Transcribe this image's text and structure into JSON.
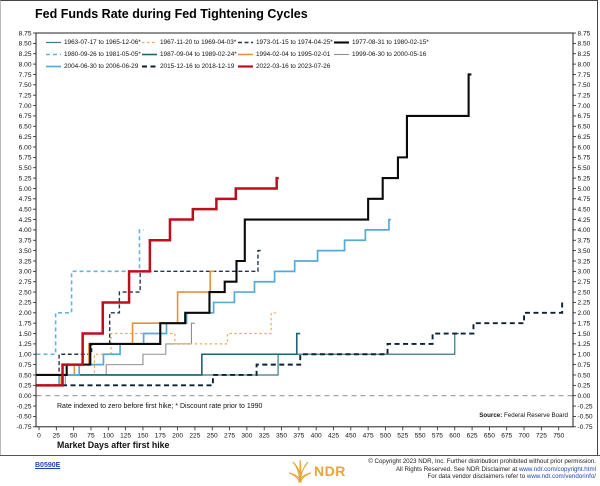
{
  "header": {
    "title": "Fed Funds Rate during Fed Tightening Cycles"
  },
  "plot": {
    "note": "Rate indexed to zero before first hike; * Discount rate prior to 1990",
    "source_label": "Source:",
    "source_value": "Federal Reserve Board"
  },
  "xaxis": {
    "label": "Market Days after first hike"
  },
  "footer": {
    "figure_id": "B0590E",
    "brand": "NDR",
    "copyright_line1": "© Copyright 2023 NDR, Inc. Further distribution prohibited without prior permission.",
    "copyright_line2_prefix": "All Rights Reserved. See NDR Disclaimer at ",
    "copyright_line2_link": "www.ndr.com/copyright.html",
    "copyright_line3_prefix": "For data vendor disclaimers refer to ",
    "copyright_line3_link": "www.ndr.com/vendorinfo/"
  },
  "colors": {
    "accent_red": "#c00d1e",
    "brand_orange": "#e8a33b",
    "link_blue": "#2244bb",
    "frame": "#222222",
    "zero_line": "#9a9a9a"
  },
  "chart_data": {
    "type": "line",
    "title": "Fed Funds Rate during Fed Tightening Cycles",
    "xlabel": "Market Days after first hike",
    "ylabel": "",
    "xlim": [
      0,
      750
    ],
    "ylim": [
      -0.75,
      8.75
    ],
    "grid": "zero-line-only",
    "legend_position": "top-left-inside",
    "x_ticks": [
      0,
      25,
      50,
      75,
      100,
      125,
      150,
      175,
      200,
      225,
      250,
      275,
      300,
      325,
      350,
      375,
      400,
      425,
      450,
      475,
      500,
      525,
      550,
      575,
      600,
      625,
      650,
      675,
      700,
      725,
      750
    ],
    "y_ticks": [
      "8.75",
      "8.50",
      "8.25",
      "8.00",
      "7.75",
      "7.50",
      "7.25",
      "7.00",
      "6.75",
      "6.50",
      "6.25",
      "6.00",
      "5.75",
      "5.50",
      "5.25",
      "5.00",
      "4.75",
      "4.50",
      "4.25",
      "4.00",
      "3.75",
      "3.50",
      "3.25",
      "3.00",
      "2.75",
      "2.50",
      "2.25",
      "2.00",
      "1.75",
      "1.50",
      "1.25",
      "1.00",
      "0.75",
      "0.50",
      "0.25",
      "0.00",
      "-0.25",
      "-0.50",
      "-0.75"
    ],
    "legend_rows": [
      [
        0,
        1,
        2,
        3
      ],
      [
        4,
        5,
        6,
        7
      ],
      [
        8,
        9,
        10
      ]
    ],
    "series": [
      {
        "name": "1963-07-17 to 1965-12-06*",
        "color": "#3a7888",
        "dash": "",
        "width": 1.2,
        "points": [
          [
            0,
            0.5
          ],
          [
            345,
            1.0
          ],
          [
            600,
            1.5
          ],
          [
            606,
            1.5
          ]
        ]
      },
      {
        "name": "1967-11-20 to 1969-04-03*",
        "color": "#ecae55",
        "dash": "2.5,2.5",
        "width": 1.2,
        "points": [
          [
            0,
            0.5
          ],
          [
            80,
            1.0
          ],
          [
            104,
            1.5
          ],
          [
            196,
            1.25
          ],
          [
            272,
            1.5
          ],
          [
            335,
            2.0
          ],
          [
            342,
            2.0
          ]
        ]
      },
      {
        "name": "1973-01-15 to 1974-04-25*",
        "color": "#22364e",
        "dash": "4,2.5",
        "width": 1.4,
        "points": [
          [
            0,
            0.5
          ],
          [
            29,
            1.0
          ],
          [
            76,
            1.25
          ],
          [
            102,
            2.0
          ],
          [
            116,
            2.5
          ],
          [
            146,
            3.0
          ],
          [
            316,
            3.5
          ],
          [
            322,
            3.5
          ]
        ]
      },
      {
        "name": "1977-08-31 to 1980-02-15*",
        "color": "#0a0a0a",
        "dash": "",
        "width": 2.1,
        "points": [
          [
            0,
            0.5
          ],
          [
            40,
            0.75
          ],
          [
            74,
            1.25
          ],
          [
            175,
            1.75
          ],
          [
            211,
            2.0
          ],
          [
            246,
            2.5
          ],
          [
            268,
            2.75
          ],
          [
            285,
            3.25
          ],
          [
            297,
            4.25
          ],
          [
            475,
            4.75
          ],
          [
            496,
            5.25
          ],
          [
            518,
            5.75
          ],
          [
            531,
            6.75
          ],
          [
            620,
            7.75
          ],
          [
            624,
            7.75
          ]
        ]
      },
      {
        "name": "1980-09-26 to 1981-05-05*",
        "color": "#63b5d8",
        "dash": "4,3",
        "width": 1.6,
        "points": [
          [
            0,
            1.0
          ],
          [
            24,
            2.0
          ],
          [
            47,
            3.0
          ],
          [
            145,
            4.0
          ],
          [
            151,
            4.0
          ]
        ]
      },
      {
        "name": "1987-09-04 to 1989-02-24*",
        "color": "#1d6372",
        "dash": "",
        "width": 1.6,
        "points": [
          [
            0,
            0.5
          ],
          [
            235,
            1.0
          ],
          [
            372,
            1.5
          ],
          [
            377,
            1.5
          ]
        ]
      },
      {
        "name": "1994-02-04 to 1995-02-01",
        "color": "#e8913c",
        "dash": "",
        "width": 1.6,
        "points": [
          [
            0,
            0.25
          ],
          [
            32,
            0.5
          ],
          [
            51,
            0.75
          ],
          [
            72,
            1.25
          ],
          [
            135,
            1.75
          ],
          [
            200,
            2.5
          ],
          [
            247,
            3.0
          ],
          [
            253,
            3.0
          ]
        ]
      },
      {
        "name": "1999-06-30 to 2000-05-16",
        "color": "#909090",
        "dash": "",
        "width": 1.1,
        "points": [
          [
            0,
            0.25
          ],
          [
            38,
            0.5
          ],
          [
            97,
            0.75
          ],
          [
            150,
            1.0
          ],
          [
            183,
            1.25
          ],
          [
            220,
            1.75
          ],
          [
            225,
            1.75
          ]
        ]
      },
      {
        "name": "2004-06-30 to 2006-06-29",
        "color": "#56abd6",
        "dash": "",
        "width": 1.7,
        "points": [
          [
            0,
            0.25
          ],
          [
            29,
            0.5
          ],
          [
            58,
            0.75
          ],
          [
            93,
            1.0
          ],
          [
            117,
            1.25
          ],
          [
            151,
            1.5
          ],
          [
            184,
            1.75
          ],
          [
            213,
            2.0
          ],
          [
            252,
            2.25
          ],
          [
            282,
            2.5
          ],
          [
            311,
            2.75
          ],
          [
            340,
            3.0
          ],
          [
            369,
            3.25
          ],
          [
            402,
            3.5
          ],
          [
            441,
            3.75
          ],
          [
            471,
            4.0
          ],
          [
            505,
            4.25
          ],
          [
            508,
            4.25
          ]
        ]
      },
      {
        "name": "2015-12-16 to 2018-12-19",
        "color": "#0c2133",
        "dash": "5,3.5",
        "width": 1.9,
        "points": [
          [
            0,
            0.25
          ],
          [
            251,
            0.5
          ],
          [
            314,
            0.75
          ],
          [
            377,
            1.0
          ],
          [
            503,
            1.25
          ],
          [
            568,
            1.5
          ],
          [
            627,
            1.75
          ],
          [
            700,
            2.0
          ],
          [
            755,
            2.25
          ],
          [
            758,
            2.25
          ]
        ]
      },
      {
        "name": "2022-03-16 to 2023-07-26",
        "color": "#c00d1e",
        "dash": "",
        "width": 2.5,
        "points": [
          [
            0,
            0.25
          ],
          [
            34,
            0.75
          ],
          [
            63,
            1.5
          ],
          [
            92,
            2.25
          ],
          [
            130,
            3.0
          ],
          [
            160,
            3.75
          ],
          [
            189,
            4.25
          ],
          [
            222,
            4.5
          ],
          [
            256,
            4.75
          ],
          [
            284,
            5.0
          ],
          [
            343,
            5.25
          ],
          [
            346,
            5.25
          ]
        ]
      }
    ]
  }
}
